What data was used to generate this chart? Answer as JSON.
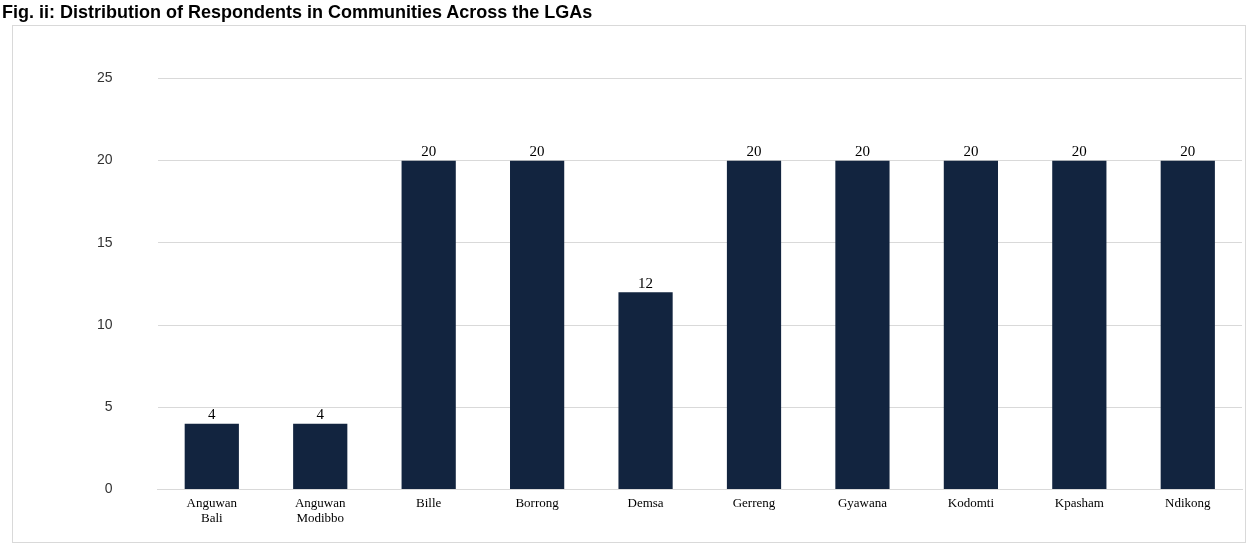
{
  "chart_data": {
    "type": "bar",
    "title": "Fig. ii: Distribution of Respondents in Communities Across the LGAs",
    "categories": [
      "Anguwan Bali",
      "Anguwan Modibbo",
      "Bille",
      "Borrong",
      "Demsa",
      "Gerreng",
      "Gyawana",
      "Kodomti",
      "Kpasham",
      "Ndikong"
    ],
    "values": [
      4,
      4,
      20,
      20,
      12,
      20,
      20,
      20,
      20,
      20
    ],
    "color": "#12243f",
    "ylim": [
      0,
      25
    ],
    "yticks": [
      0,
      5,
      10,
      15,
      20,
      25
    ],
    "grid": "y",
    "data_labels": true
  }
}
